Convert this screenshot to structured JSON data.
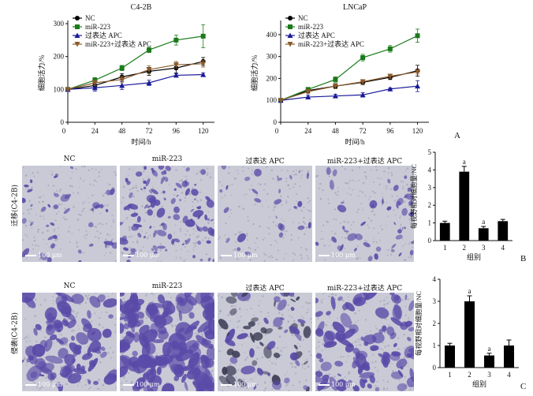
{
  "panels": {
    "A": "A",
    "B": "B",
    "C": "C"
  },
  "line_legend": [
    "NC",
    "miR-223",
    "过表达 APC",
    "miR-223+过表达 APC"
  ],
  "micro_groups": [
    "NC",
    "miR-223",
    "过表达 APC",
    "miR-223+过表达 APC"
  ],
  "scale_bar": "100 μm",
  "row_labels": {
    "migration": "迁移(C4-2B)",
    "invasion": "侵袭(C4-2B)"
  },
  "colors": {
    "NC": "#000000",
    "miR-223": "#1a7a1a",
    "APC": "#1a1a99",
    "combo": "#8b5a2b",
    "stain": "#5a4aa8",
    "bg": "#c9cad6"
  },
  "chart_data": [
    {
      "type": "line",
      "title": "C4-2B",
      "xlabel": "时间/h",
      "ylabel": "细胞活力/%",
      "x": [
        0,
        24,
        48,
        72,
        96,
        120
      ],
      "xlim": [
        0,
        130
      ],
      "ylim": [
        0,
        300
      ],
      "yticks": [
        0,
        100,
        200,
        300
      ],
      "legend": "top-left",
      "series": [
        {
          "name": "NC",
          "values": [
            100,
            112,
            138,
            155,
            165,
            185
          ],
          "err": [
            3,
            8,
            10,
            12,
            15,
            12
          ],
          "marker": "circle"
        },
        {
          "name": "miR-223",
          "values": [
            100,
            128,
            165,
            220,
            250,
            262
          ],
          "err": [
            3,
            8,
            8,
            8,
            15,
            35
          ],
          "marker": "square"
        },
        {
          "name": "过表达 APC",
          "values": [
            100,
            105,
            112,
            120,
            143,
            145
          ],
          "err": [
            3,
            10,
            12,
            8,
            5,
            5
          ],
          "marker": "triangle-up"
        },
        {
          "name": "miR-223+过表达 APC",
          "values": [
            100,
            120,
            130,
            160,
            175,
            178
          ],
          "err": [
            3,
            8,
            10,
            12,
            10,
            10
          ],
          "marker": "triangle-down"
        }
      ]
    },
    {
      "type": "line",
      "title": "LNCaP",
      "xlabel": "时间/h",
      "ylabel": "细胞活力/%",
      "x": [
        0,
        24,
        48,
        72,
        96,
        120
      ],
      "xlim": [
        0,
        130
      ],
      "ylim": [
        0,
        450
      ],
      "yticks": [
        0,
        100,
        200,
        300,
        400
      ],
      "legend": "top-left",
      "series": [
        {
          "name": "NC",
          "values": [
            100,
            145,
            165,
            182,
            205,
            235
          ],
          "err": [
            3,
            10,
            10,
            10,
            10,
            25
          ],
          "marker": "circle"
        },
        {
          "name": "miR-223",
          "values": [
            100,
            150,
            195,
            295,
            335,
            395
          ],
          "err": [
            3,
            8,
            12,
            15,
            15,
            30
          ],
          "marker": "square"
        },
        {
          "name": "过表达 APC",
          "values": [
            100,
            115,
            120,
            125,
            152,
            165
          ],
          "err": [
            3,
            8,
            8,
            10,
            5,
            25
          ],
          "marker": "triangle-up"
        },
        {
          "name": "miR-223+过表达 APC",
          "values": [
            100,
            140,
            165,
            185,
            210,
            230
          ],
          "err": [
            3,
            10,
            12,
            10,
            10,
            10
          ],
          "marker": "triangle-down"
        }
      ]
    },
    {
      "type": "bar",
      "xlabel": "组别",
      "ylabel": "每视野相对细胞量/NC",
      "categories": [
        "1",
        "2",
        "3",
        "4"
      ],
      "values": [
        1.0,
        3.9,
        0.7,
        1.1
      ],
      "err": [
        0.1,
        0.3,
        0.1,
        0.1
      ],
      "annotations": [
        "",
        "a",
        "a",
        ""
      ],
      "ylim": [
        0,
        5
      ],
      "yticks": [
        0,
        1,
        2,
        3,
        4,
        5
      ]
    },
    {
      "type": "bar",
      "xlabel": "组别",
      "ylabel": "每视野相对细胞量/NC",
      "categories": [
        "1",
        "2",
        "3",
        "4"
      ],
      "values": [
        1.0,
        3.0,
        0.55,
        1.0
      ],
      "err": [
        0.1,
        0.25,
        0.1,
        0.25
      ],
      "annotations": [
        "",
        "a",
        "a",
        ""
      ],
      "ylim": [
        0,
        4
      ],
      "yticks": [
        0,
        1,
        2,
        3,
        4
      ]
    }
  ]
}
